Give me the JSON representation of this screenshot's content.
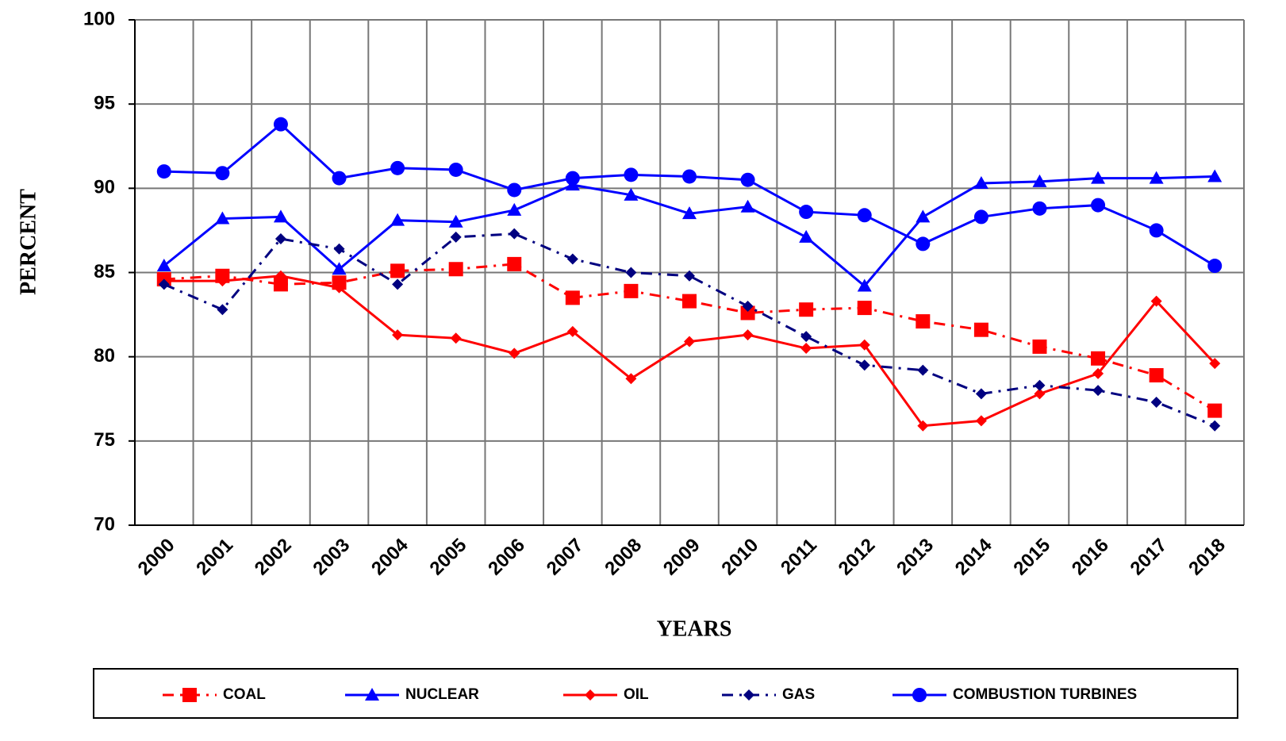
{
  "chart_data": {
    "type": "line",
    "x_label": "YEARS",
    "y_label": "PERCENT",
    "categories": [
      "2000",
      "2001",
      "2002",
      "2003",
      "2004",
      "2005",
      "2006",
      "2007",
      "2008",
      "2009",
      "2010",
      "2011",
      "2012",
      "2013",
      "2014",
      "2015",
      "2016",
      "2017",
      "2018"
    ],
    "ylim": [
      70,
      100
    ],
    "yticks": [
      70,
      75,
      80,
      85,
      90,
      95,
      100
    ],
    "grid": true,
    "legend": "bottom",
    "series": [
      {
        "name": "COAL",
        "color": "#ff0000",
        "marker": "square",
        "line_style": "dashdot",
        "values": [
          84.6,
          84.8,
          84.3,
          84.4,
          85.1,
          85.2,
          85.5,
          83.5,
          83.9,
          83.3,
          82.6,
          82.8,
          82.9,
          82.1,
          81.6,
          80.6,
          79.9,
          78.9,
          76.8
        ]
      },
      {
        "name": "NUCLEAR",
        "color": "#0000ff",
        "marker": "triangle",
        "line_style": "solid",
        "values": [
          85.4,
          88.2,
          88.3,
          85.2,
          88.1,
          88.0,
          88.7,
          90.2,
          89.6,
          88.5,
          88.9,
          87.1,
          84.2,
          88.3,
          90.3,
          90.4,
          90.6,
          90.6,
          90.7
        ]
      },
      {
        "name": "OIL",
        "color": "#ff0000",
        "marker": "diamond",
        "line_style": "solid",
        "values": [
          84.5,
          84.5,
          84.8,
          84.1,
          81.3,
          81.1,
          80.2,
          81.5,
          78.7,
          80.9,
          81.3,
          80.5,
          80.7,
          75.9,
          76.2,
          77.8,
          79.0,
          83.3,
          79.6
        ]
      },
      {
        "name": "GAS",
        "color": "#000080",
        "marker": "diamond",
        "line_style": "dashdot",
        "values": [
          84.3,
          82.8,
          87.0,
          86.4,
          84.3,
          87.1,
          87.3,
          85.8,
          85.0,
          84.8,
          83.0,
          81.2,
          79.5,
          79.2,
          77.8,
          78.3,
          78.0,
          77.3,
          75.9
        ]
      },
      {
        "name": "COMBUSTION TURBINES",
        "color": "#0000ff",
        "marker": "circle",
        "line_style": "solid",
        "values": [
          91.0,
          90.9,
          93.8,
          90.6,
          91.2,
          91.1,
          89.9,
          90.6,
          90.8,
          90.7,
          90.5,
          88.6,
          88.4,
          86.7,
          88.3,
          88.8,
          89.0,
          87.5,
          85.4
        ]
      }
    ]
  }
}
